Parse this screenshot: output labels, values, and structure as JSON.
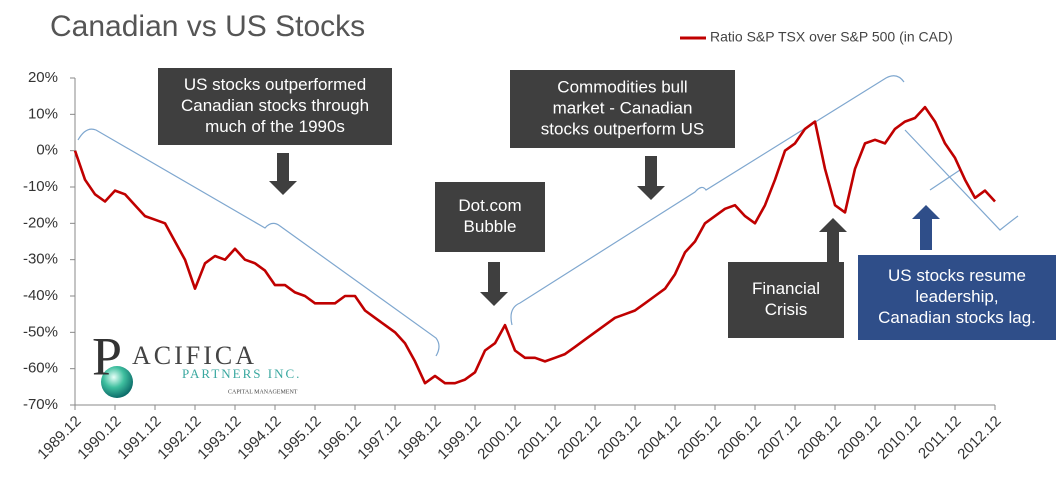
{
  "chart_data": {
    "type": "line",
    "title": "Canadian vs US Stocks",
    "x": [
      "1989.12",
      "1990.03",
      "1990.06",
      "1990.09",
      "1990.12",
      "1991.03",
      "1991.06",
      "1991.09",
      "1991.12",
      "1992.03",
      "1992.06",
      "1992.09",
      "1992.12",
      "1993.03",
      "1993.06",
      "1993.09",
      "1993.12",
      "1994.03",
      "1994.06",
      "1994.09",
      "1994.12",
      "1995.03",
      "1995.06",
      "1995.09",
      "1995.12",
      "1996.03",
      "1996.06",
      "1996.09",
      "1996.12",
      "1997.03",
      "1997.06",
      "1997.09",
      "1997.12",
      "1998.03",
      "1998.06",
      "1998.09",
      "1998.12",
      "1999.03",
      "1999.06",
      "1999.09",
      "1999.12",
      "2000.03",
      "2000.06",
      "2000.09",
      "2000.12",
      "2001.03",
      "2001.06",
      "2001.09",
      "2001.12",
      "2002.03",
      "2002.06",
      "2002.09",
      "2002.12",
      "2003.03",
      "2003.06",
      "2003.09",
      "2003.12",
      "2004.03",
      "2004.06",
      "2004.09",
      "2004.12",
      "2005.03",
      "2005.06",
      "2005.09",
      "2005.12",
      "2006.03",
      "2006.06",
      "2006.09",
      "2006.12",
      "2007.03",
      "2007.06",
      "2007.09",
      "2007.12",
      "2008.03",
      "2008.06",
      "2008.09",
      "2008.12",
      "2009.03",
      "2009.06",
      "2009.09",
      "2009.12",
      "2010.03",
      "2010.06",
      "2010.09",
      "2010.12",
      "2011.03",
      "2011.06",
      "2011.09",
      "2011.12",
      "2012.03",
      "2012.06",
      "2012.09",
      "2012.12"
    ],
    "series": [
      {
        "name": "Ratio S&P TSX over S&P 500 (in CAD)",
        "color": "#c00000",
        "values": [
          0,
          -8,
          -12,
          -14,
          -11,
          -12,
          -15,
          -18,
          -19,
          -20,
          -25,
          -30,
          -38,
          -31,
          -29,
          -30,
          -27,
          -30,
          -31,
          -33,
          -37,
          -37,
          -39,
          -40,
          -42,
          -42,
          -42,
          -40,
          -40,
          -44,
          -46,
          -48,
          -50,
          -53,
          -58,
          -64,
          -62,
          -64,
          -64,
          -63,
          -61,
          -55,
          -53,
          -48,
          -55,
          -57,
          -57,
          -58,
          -57,
          -56,
          -54,
          -52,
          -50,
          -48,
          -46,
          -45,
          -44,
          -42,
          -40,
          -38,
          -34,
          -28,
          -25,
          -20,
          -18,
          -16,
          -15,
          -18,
          -20,
          -15,
          -8,
          0,
          2,
          6,
          8,
          -5,
          -15,
          -17,
          -5,
          2,
          3,
          2,
          6,
          8,
          9,
          12,
          8,
          2,
          -2,
          -8,
          -13,
          -11,
          -14
        ]
      }
    ],
    "ylim": [
      -70,
      20
    ],
    "yticks": [
      {
        "value": 20,
        "label": "20%"
      },
      {
        "value": 10,
        "label": "10%"
      },
      {
        "value": 0,
        "label": "0%"
      },
      {
        "value": -10,
        "label": "-10%"
      },
      {
        "value": -20,
        "label": "-20%"
      },
      {
        "value": -30,
        "label": "-30%"
      },
      {
        "value": -40,
        "label": "-40%"
      },
      {
        "value": -50,
        "label": "-50%"
      },
      {
        "value": -60,
        "label": "-60%"
      },
      {
        "value": -70,
        "label": "-70%"
      }
    ],
    "xticks": [
      "1989.12",
      "1990.12",
      "1991.12",
      "1992.12",
      "1993.12",
      "1994.12",
      "1995.12",
      "1996.12",
      "1997.12",
      "1998.12",
      "1999.12",
      "2000.12",
      "2001.12",
      "2002.12",
      "2003.12",
      "2004.12",
      "2005.12",
      "2006.12",
      "2007.12",
      "2008.12",
      "2009.12",
      "2010.12",
      "2011.12",
      "2012.12"
    ],
    "legend": "top-right",
    "annotations": [
      {
        "lines": [
          "US stocks outperformed",
          "Canadian stocks through",
          "much of the 1990s"
        ]
      },
      {
        "lines": [
          "Commodities bull",
          "market - Canadian",
          "stocks outperform US"
        ]
      },
      {
        "lines": [
          "Dot.com",
          "Bubble"
        ]
      },
      {
        "lines": [
          "Financial",
          "Crisis"
        ]
      },
      {
        "lines": [
          "US stocks resume",
          "leadership,",
          "Canadian stocks lag."
        ]
      }
    ]
  },
  "logo": {
    "initial": "P",
    "name": "ACIFICA",
    "partners": "PARTNERS INC.",
    "tagline": "CAPITAL MANAGEMENT"
  }
}
